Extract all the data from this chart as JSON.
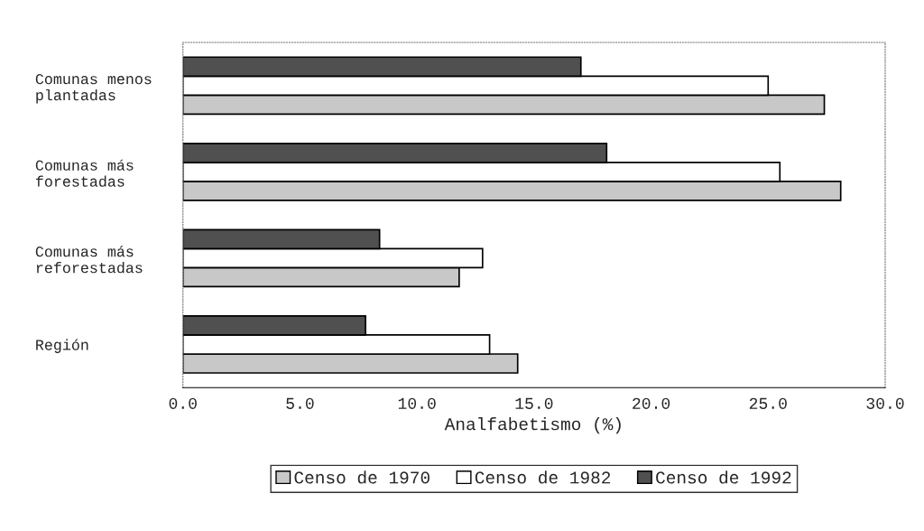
{
  "chart_data": {
    "type": "bar",
    "orientation": "horizontal",
    "categories": [
      "Comunas menos\nplantadas",
      "Comunas más\nforestadas",
      "Comunas más\nreforestadas",
      "Región"
    ],
    "series": [
      {
        "name": "Censo de 1970",
        "color": "#c8c8c8",
        "values": [
          27.4,
          28.1,
          11.8,
          14.3
        ]
      },
      {
        "name": "Censo de 1982",
        "color": "#ffffff",
        "values": [
          25.0,
          25.5,
          12.8,
          13.1
        ]
      },
      {
        "name": "Censo de 1992",
        "color": "#505050",
        "values": [
          17.0,
          18.1,
          8.4,
          7.8
        ]
      }
    ],
    "xlabel": "Analfabetismo (%)",
    "xlim": [
      0,
      30
    ],
    "xticks": [
      {
        "value": 0,
        "label": "0.0"
      },
      {
        "value": 5,
        "label": "5.0"
      },
      {
        "value": 10,
        "label": "10.0"
      },
      {
        "value": 15,
        "label": "15.0"
      },
      {
        "value": 20,
        "label": "20.0"
      },
      {
        "value": 25,
        "label": "25.0"
      },
      {
        "value": 30,
        "label": "30.0"
      }
    ],
    "grid": false,
    "legend": "bottom"
  }
}
